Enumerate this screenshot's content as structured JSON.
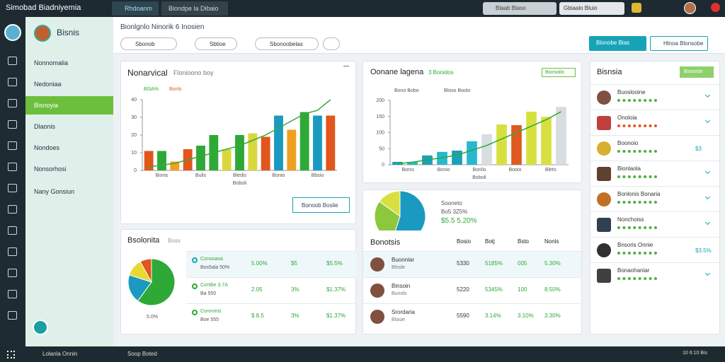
{
  "topbar": {
    "app_title": "Simobad Biadniyemia",
    "tabs": [
      "Rhdoanm",
      "Biondpe la Dibaio"
    ],
    "search": "Blaab Blaso",
    "account": "Gbiaalo Bluio"
  },
  "sidebar": {
    "user": "Bisnis",
    "items": [
      "Nonnomalia",
      "Nedoniaa",
      "Bisnoyia",
      "Dlaonis",
      "Nondoes",
      "Nonsorhosi",
      "Nany Gonsiun"
    ],
    "active": 2
  },
  "header": {
    "title": "Bionlgnlo Ninorik 6 Inosien",
    "buttons": [
      "Sbonob",
      "Sbtioe",
      "Sbonoobelas"
    ],
    "primary": "Blonobe Bias",
    "search": "Hlnoa Blonsobe"
  },
  "panel1": {
    "title": "Nonarvical",
    "subtitle": "Flonioono boy",
    "legend": [
      "Bl3A%",
      "Bonls"
    ],
    "button": "Bonoob Boslie",
    "chart": {
      "type": "bar",
      "ylim": [
        0,
        40
      ],
      "yticks": [
        0,
        10,
        20,
        30,
        40
      ],
      "categories": [
        "Bonis",
        "Bulis",
        "Bledis",
        "Bonio",
        "Bbsio"
      ],
      "x_label": "Boboli",
      "values": [
        11,
        11,
        5,
        12,
        14,
        20,
        12,
        20,
        21,
        19,
        31,
        23,
        33,
        31,
        31
      ],
      "colors": [
        "#e0561c",
        "#2ea836",
        "#f0a020",
        "#e0561c",
        "#2ea836",
        "#2ea836",
        "#d8d83c",
        "#2ea836",
        "#d8d83c",
        "#e0561c",
        "#1a9ac0",
        "#f0a020",
        "#2ea836",
        "#1a9ac0",
        "#e0561c"
      ],
      "line": [
        2,
        3,
        4,
        6,
        8,
        10,
        12,
        14,
        17,
        20,
        24,
        28,
        32,
        34,
        40
      ],
      "line_color": "#3aa83a"
    }
  },
  "panel2": {
    "title": "Oonane lagena",
    "subtitle": "3 Bonidos",
    "badge": "Bonsoilo",
    "legend": [
      "Bono Bobo",
      "Bloso Boolo"
    ],
    "chart": {
      "type": "bar",
      "ylim": [
        0,
        200
      ],
      "yticks": [
        0,
        50,
        100,
        150,
        200
      ],
      "categories": [
        "Bonis",
        "Bonio",
        "Bonlis",
        "Booio",
        "Bleto"
      ],
      "x_label": "Boboli",
      "values": [
        9,
        9,
        29,
        40,
        44,
        73,
        95,
        125,
        123,
        165,
        149,
        180
      ],
      "colors": [
        "#1aa0b8",
        "#28b8d0",
        "#1aa0b8",
        "#28b8d0",
        "#1aa0b8",
        "#28b8d0",
        "#d8dde0",
        "#d8e040",
        "#e05a20",
        "#d8e040",
        "#d8e040",
        "#d8dde0"
      ],
      "line": [
        3,
        8,
        15,
        22,
        30,
        45,
        60,
        80,
        100,
        120,
        140,
        165
      ],
      "line_color": "#2ea836"
    }
  },
  "panel3": {
    "title": "Bisnsia",
    "button": "Bsoioise",
    "items": [
      {
        "name": "Buoslooine",
        "value": null
      },
      {
        "name": "Onoloia",
        "value": null
      },
      {
        "name": "Boonoio",
        "value": "$3"
      },
      {
        "name": "Bionlaola",
        "value": null
      },
      {
        "name": "Bonlonis Bonaria",
        "value": null
      },
      {
        "name": "Nonchoiss",
        "value": null
      },
      {
        "name": "Bnsoris Onnie",
        "value": "$3.5%"
      },
      {
        "name": "Bonaohaniar",
        "value": null
      }
    ]
  },
  "panel4": {
    "pie_labels": [
      "Sooneto",
      "Bo5 3Z5%",
      "$5.5 5.20%"
    ],
    "pie": [
      {
        "value": 55,
        "color": "#1a9ac0"
      },
      {
        "value": 30,
        "color": "#8cc83c"
      },
      {
        "value": 15,
        "color": "#d8e040"
      }
    ],
    "columns": [
      "Bonotsis",
      "Bosio",
      "Botj",
      "Bsto",
      "Nonls"
    ],
    "rows": [
      [
        "Buonnlar",
        "5330",
        "5185%",
        "005",
        "5.30%"
      ],
      [
        "Binsoin",
        "5220",
        "5345%",
        "100",
        "8.50%"
      ],
      [
        "Srordaria",
        "5590",
        "3.14%",
        "3.10%",
        "3.30%"
      ]
    ],
    "row_sub": [
      "Blosle",
      "Bunols",
      "Blasie"
    ]
  },
  "panel5": {
    "title": "Bsolonita",
    "subtitle": "Boss",
    "pie_label": "5.0%",
    "pie": [
      {
        "value": 60,
        "color": "#2ea836"
      },
      {
        "value": 20,
        "color": "#1a9ac0"
      },
      {
        "value": 12,
        "color": "#e8d830"
      },
      {
        "value": 8,
        "color": "#e0561c"
      }
    ],
    "rows": [
      [
        "Conooasa",
        "Bos5ala 50%",
        "5.00%",
        "$5",
        "$5.5%"
      ],
      [
        "Contbe 3.7A",
        "Ba 550",
        "2.05",
        "3%",
        "$1.37%"
      ],
      [
        "Conmmis",
        "Boe 555",
        "$ 8.5",
        "3%",
        "$1.37%"
      ]
    ]
  },
  "taskbar": {
    "items": [
      "Lolanla Onnin",
      "Soop Boted"
    ],
    "clock": "10 6:10 Bis"
  }
}
